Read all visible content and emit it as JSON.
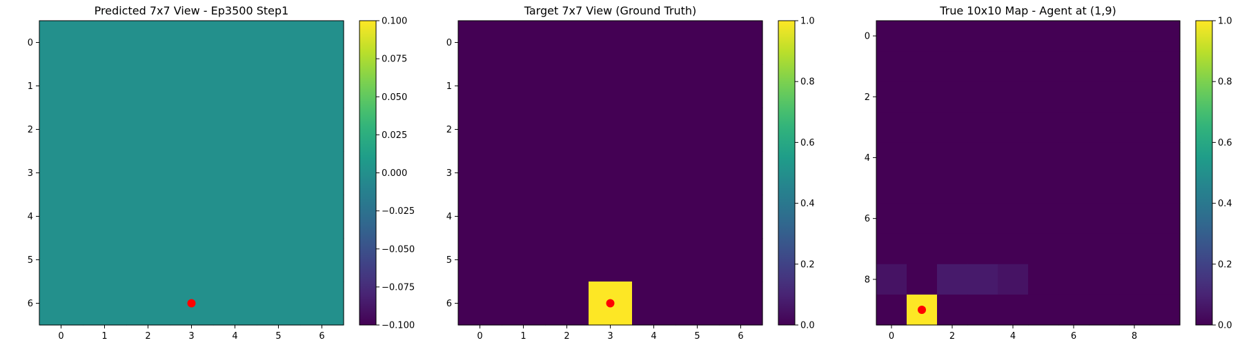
{
  "chart_data": [
    {
      "type": "heatmap",
      "title": "Predicted 7x7 View - Ep3500 Step1",
      "rows": 7,
      "cols": 7,
      "vmin": -0.1,
      "vmax": 0.1,
      "colorbar_ticks": [
        "0.100",
        "0.075",
        "0.050",
        "0.025",
        "0.000",
        "−0.025",
        "−0.050",
        "−0.075",
        "−0.100"
      ],
      "x_ticks": [
        "0",
        "1",
        "2",
        "3",
        "4",
        "5",
        "6"
      ],
      "y_ticks": [
        "0",
        "1",
        "2",
        "3",
        "4",
        "5",
        "6"
      ],
      "values": [
        [
          0,
          0,
          0,
          0,
          0,
          0,
          0
        ],
        [
          0,
          0,
          0,
          0,
          0,
          0,
          0
        ],
        [
          0,
          0,
          0,
          0,
          0,
          0,
          0
        ],
        [
          0,
          0,
          0,
          0,
          0,
          0,
          0
        ],
        [
          0,
          0,
          0,
          0,
          0,
          0,
          0
        ],
        [
          0,
          0,
          0,
          0,
          0,
          0,
          0
        ],
        [
          0,
          0,
          0,
          0,
          0,
          0,
          0
        ]
      ],
      "marker": {
        "x": 3,
        "y": 6,
        "color": "#ff0000"
      }
    },
    {
      "type": "heatmap",
      "title": "Target 7x7 View (Ground Truth)",
      "rows": 7,
      "cols": 7,
      "vmin": 0,
      "vmax": 1,
      "colorbar_ticks": [
        "1.0",
        "0.8",
        "0.6",
        "0.4",
        "0.2",
        "0.0"
      ],
      "x_ticks": [
        "0",
        "1",
        "2",
        "3",
        "4",
        "5",
        "6"
      ],
      "y_ticks": [
        "0",
        "1",
        "2",
        "3",
        "4",
        "5",
        "6"
      ],
      "values": [
        [
          0,
          0,
          0,
          0,
          0,
          0,
          0
        ],
        [
          0,
          0,
          0,
          0,
          0,
          0,
          0
        ],
        [
          0,
          0,
          0,
          0,
          0,
          0,
          0
        ],
        [
          0,
          0,
          0,
          0,
          0,
          0,
          0
        ],
        [
          0,
          0,
          0,
          0,
          0,
          0,
          0
        ],
        [
          0,
          0,
          0,
          0,
          0,
          0,
          0
        ],
        [
          0,
          0,
          0,
          1,
          0,
          0,
          0
        ]
      ],
      "marker": {
        "x": 3,
        "y": 6,
        "color": "#ff0000"
      }
    },
    {
      "type": "heatmap",
      "title": "True 10x10 Map - Agent at (1,9)",
      "rows": 10,
      "cols": 10,
      "vmin": 0,
      "vmax": 1,
      "colorbar_ticks": [
        "1.0",
        "0.8",
        "0.6",
        "0.4",
        "0.2",
        "0.0"
      ],
      "x_ticks": [
        "0",
        "2",
        "4",
        "6",
        "8"
      ],
      "y_ticks": [
        "0",
        "2",
        "4",
        "6",
        "8"
      ],
      "values": [
        [
          0,
          0,
          0,
          0,
          0,
          0,
          0,
          0,
          0,
          0
        ],
        [
          0,
          0,
          0,
          0,
          0,
          0,
          0,
          0,
          0,
          0
        ],
        [
          0,
          0,
          0,
          0,
          0,
          0,
          0,
          0,
          0,
          0
        ],
        [
          0,
          0,
          0,
          0,
          0,
          0,
          0,
          0,
          0,
          0
        ],
        [
          0,
          0,
          0,
          0,
          0,
          0,
          0,
          0,
          0,
          0
        ],
        [
          0,
          0,
          0,
          0,
          0,
          0,
          0,
          0,
          0,
          0
        ],
        [
          0,
          0,
          0,
          0,
          0,
          0,
          0,
          0,
          0,
          0
        ],
        [
          0,
          0,
          0,
          0,
          0,
          0,
          0,
          0,
          0,
          0
        ],
        [
          0.05,
          0,
          0.07,
          0.07,
          0.05,
          0,
          0,
          0,
          0,
          0
        ],
        [
          0,
          1,
          0,
          0,
          0,
          0,
          0,
          0,
          0,
          0
        ]
      ],
      "marker": {
        "x": 1,
        "y": 9,
        "color": "#ff0000"
      }
    }
  ]
}
